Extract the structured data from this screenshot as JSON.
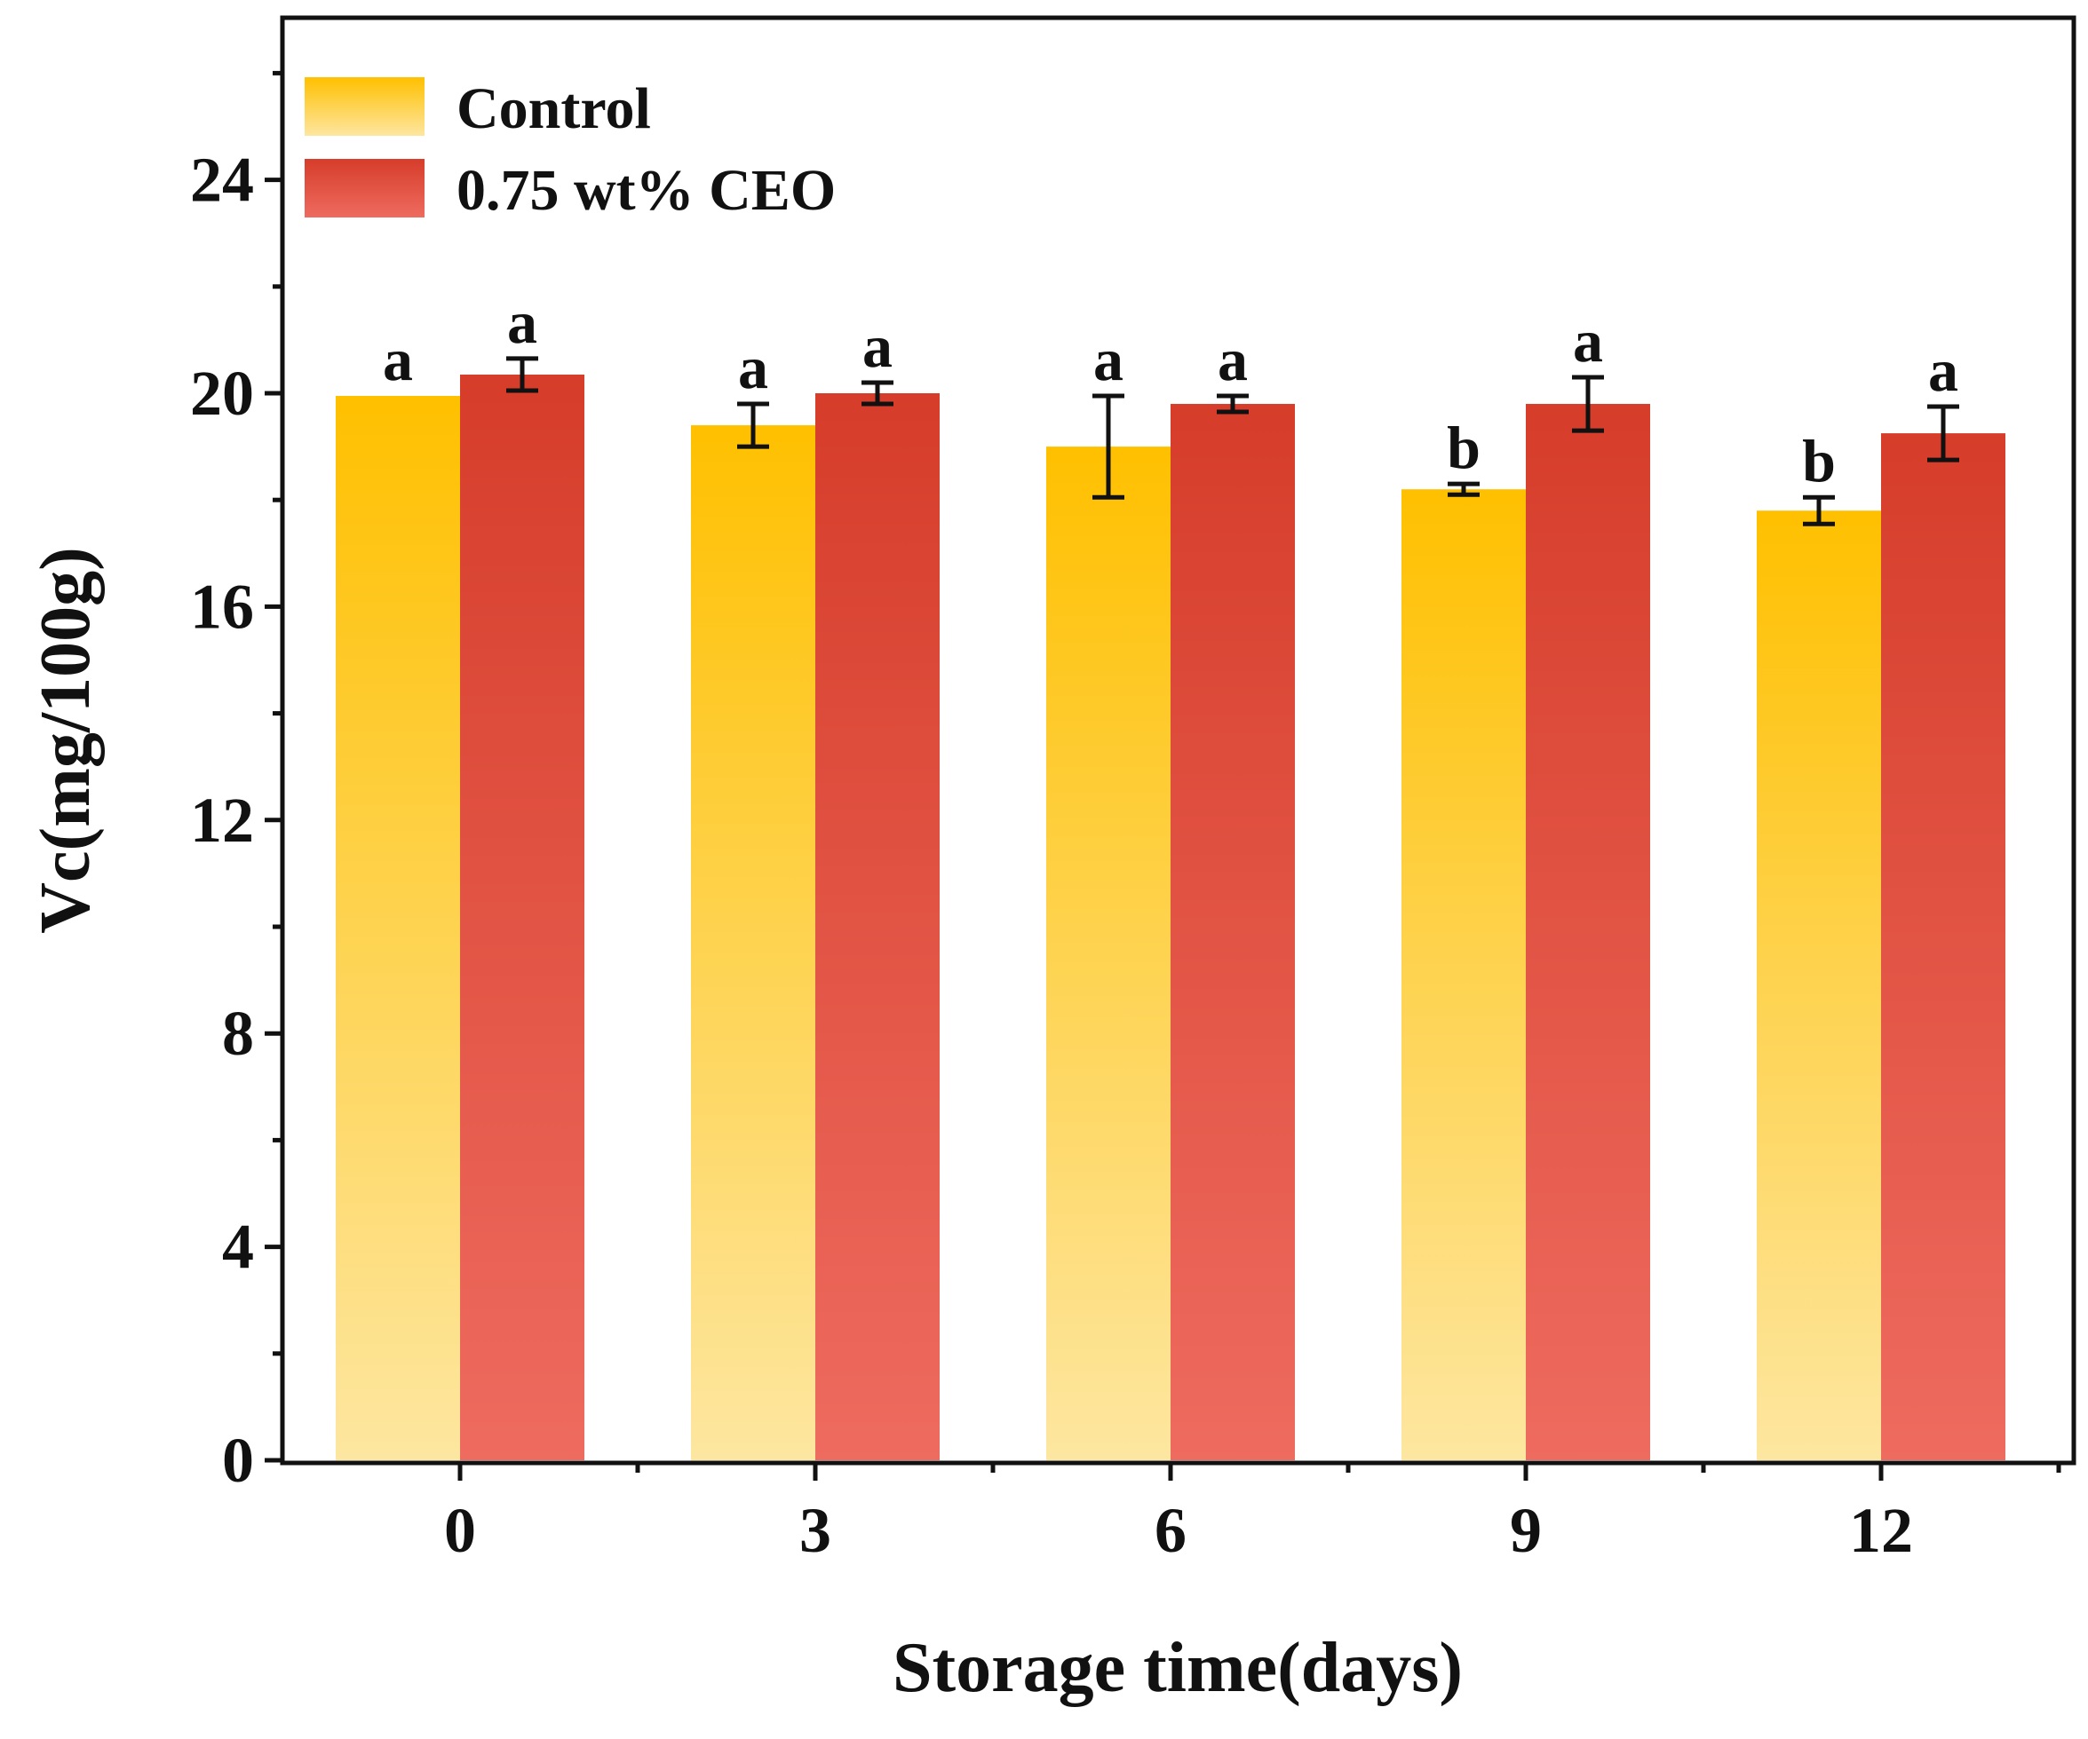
{
  "chart_data": {
    "type": "bar",
    "title": "",
    "xlabel": "Storage time(days)",
    "ylabel": "Vc(mg/100g)",
    "categories": [
      "0",
      "3",
      "6",
      "9",
      "12"
    ],
    "ylim": [
      0,
      27
    ],
    "yticks": [
      0,
      4,
      8,
      12,
      16,
      20,
      24
    ],
    "ytick_labels": [
      "0",
      "4",
      "8",
      "12",
      "16",
      "20",
      "24"
    ],
    "grid": false,
    "legend_position": "top-left",
    "series": [
      {
        "name": "Control",
        "values": [
          19.95,
          19.4,
          19.0,
          18.2,
          17.8
        ],
        "errors": [
          0.0,
          0.4,
          0.95,
          0.1,
          0.25
        ],
        "letters": [
          "a",
          "a",
          "a",
          "b",
          "b"
        ],
        "color_top": "#FFC000",
        "color_bottom": "#FDE6A0"
      },
      {
        "name": "0.75 wt% CEO",
        "values": [
          20.35,
          20.0,
          19.8,
          19.8,
          19.25
        ],
        "errors": [
          0.3,
          0.2,
          0.15,
          0.5,
          0.5
        ],
        "letters": [
          "a",
          "a",
          "a",
          "a",
          "a"
        ],
        "color_top": "#D63D2A",
        "color_bottom": "#EE6B5F"
      }
    ]
  }
}
